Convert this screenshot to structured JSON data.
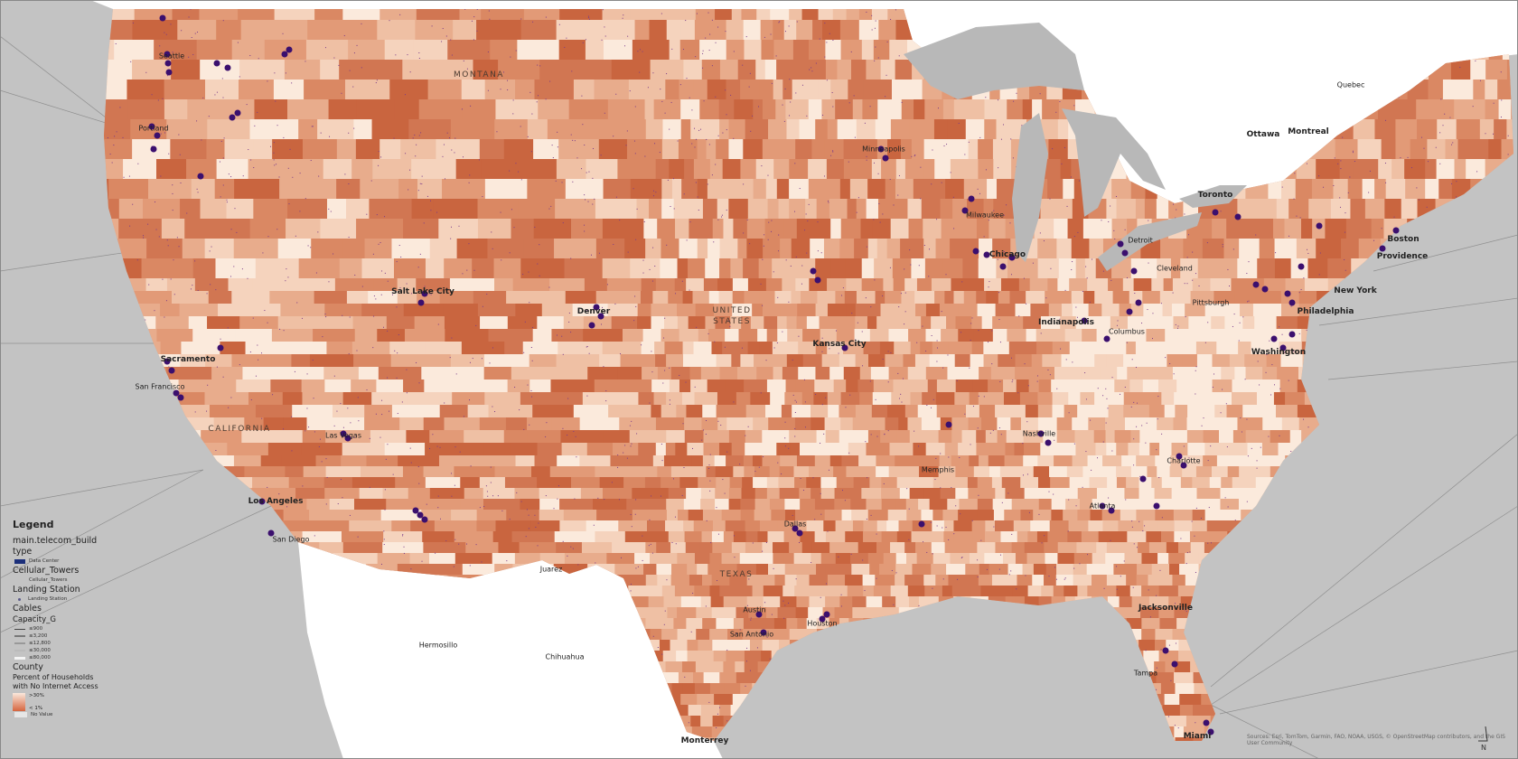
{
  "map": {
    "colors": {
      "ocean": "#c3c3c3",
      "land_foreign": "#ffffff",
      "lakes": "#b5b5b5",
      "county_high": "#c9603a",
      "county_low": "#fbeadc",
      "data_center": "#3b0f6e",
      "no_value": "#e6e6e6"
    },
    "region_labels": [
      {
        "id": "montana",
        "text": "MONTANA"
      },
      {
        "id": "us",
        "text": "UNITED STATES"
      },
      {
        "id": "california",
        "text": "CALIFORNIA"
      },
      {
        "id": "texas",
        "text": "TEXAS"
      }
    ],
    "city_labels": [
      {
        "id": "seattle",
        "text": "Seattle"
      },
      {
        "id": "portland",
        "text": "Portland"
      },
      {
        "id": "salt-lake-city",
        "text": "Salt Lake City",
        "big": true
      },
      {
        "id": "sacramento",
        "text": "Sacramento",
        "big": true
      },
      {
        "id": "san-francisco",
        "text": "San Francisco"
      },
      {
        "id": "los-angeles",
        "text": "Los Angeles",
        "big": true
      },
      {
        "id": "san-diego",
        "text": "San Diego"
      },
      {
        "id": "las-vegas",
        "text": "Las Vegas"
      },
      {
        "id": "denver",
        "text": "Denver",
        "big": true
      },
      {
        "id": "kansas-city",
        "text": "Kansas City",
        "big": true
      },
      {
        "id": "minneapolis",
        "text": "Minneapolis"
      },
      {
        "id": "milwaukee",
        "text": "Milwaukee"
      },
      {
        "id": "chicago",
        "text": "Chicago",
        "big": true
      },
      {
        "id": "detroit",
        "text": "Detroit"
      },
      {
        "id": "indianapolis",
        "text": "Indianapolis",
        "big": true
      },
      {
        "id": "columbus",
        "text": "Columbus"
      },
      {
        "id": "cleveland",
        "text": "Cleveland"
      },
      {
        "id": "pittsburgh",
        "text": "Pittsburgh"
      },
      {
        "id": "new-york",
        "text": "New York",
        "big": true
      },
      {
        "id": "philadelphia",
        "text": "Philadelphia",
        "big": true
      },
      {
        "id": "boston",
        "text": "Boston",
        "big": true
      },
      {
        "id": "providence",
        "text": "Providence",
        "big": true
      },
      {
        "id": "washington",
        "text": "Washington",
        "big": true
      },
      {
        "id": "charlotte",
        "text": "Charlotte"
      },
      {
        "id": "atlanta",
        "text": "Atlanta"
      },
      {
        "id": "nashville",
        "text": "Nashville"
      },
      {
        "id": "memphis",
        "text": "Memphis"
      },
      {
        "id": "dallas",
        "text": "Dallas"
      },
      {
        "id": "austin",
        "text": "Austin"
      },
      {
        "id": "san-antonio",
        "text": "San Antonio"
      },
      {
        "id": "houston",
        "text": "Houston"
      },
      {
        "id": "jacksonville",
        "text": "Jacksonville",
        "big": true
      },
      {
        "id": "tampa",
        "text": "Tampa"
      },
      {
        "id": "miami",
        "text": "Miami",
        "big": true
      },
      {
        "id": "toronto",
        "text": "Toronto",
        "big": true
      },
      {
        "id": "ottawa",
        "text": "Ottawa",
        "big": true
      },
      {
        "id": "montreal",
        "text": "Montreal",
        "big": true
      },
      {
        "id": "monterrey",
        "text": "Monterrey",
        "big": true
      },
      {
        "id": "chihuahua",
        "text": "Chihuahua"
      },
      {
        "id": "juarez",
        "text": "Juarez"
      },
      {
        "id": "hermosillo",
        "text": "Hermosillo"
      },
      {
        "id": "quebec",
        "text": "Quebec"
      }
    ]
  },
  "legend": {
    "title": "Legend",
    "layer1": "main.telecom_build",
    "layer1_field": "type",
    "data_center": "Data Center",
    "towers_layer": "Cellular_Towers",
    "towers_item": "Cellular_Towers",
    "landing_layer": "Landing Station",
    "landing_item": "Landing Station",
    "cables_layer": "Cables",
    "cables_field": "Capacity_G",
    "cable_classes": [
      "≤900",
      "≤3,200",
      "≤12,800",
      "≤30,000",
      "≤80,000"
    ],
    "county_layer": "County",
    "county_field": "Percent of Households with No Internet Access",
    "ramp_high": ">30%",
    "ramp_low": "< 1%",
    "no_value": "No Value"
  },
  "attribution": "Sources: Esri, TomTom, Garmin, FAO, NOAA, USGS, © OpenStreetMap contributors, and the GIS User Community",
  "north_arrow": {
    "label": "N",
    "icon": "north-arrow-icon"
  }
}
